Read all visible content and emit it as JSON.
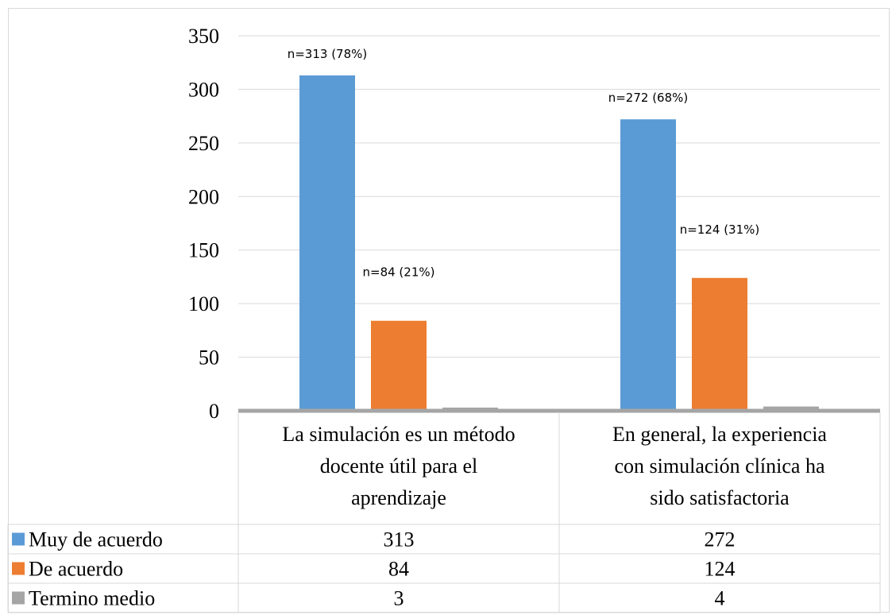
{
  "chart_data": {
    "type": "bar",
    "categories": [
      "La simulación es un método docente útil para el aprendizaje",
      "En general, la experiencia con simulación clínica ha sido satisfactoria"
    ],
    "category_lines": [
      [
        "La simulación es un método",
        "docente útil para el",
        "aprendizaje"
      ],
      [
        "En general, la experiencia",
        "con simulación clínica ha",
        "sido satisfactoria"
      ]
    ],
    "series": [
      {
        "name": "Muy de acuerdo",
        "values": [
          313,
          272
        ],
        "color": "#5b9bd5",
        "data_labels": [
          "n=313 (78%)",
          "n=272 (68%)"
        ]
      },
      {
        "name": "De acuerdo",
        "values": [
          84,
          124
        ],
        "color": "#ed7d31",
        "data_labels": [
          "n=84 (21%)",
          "n=124 (31%)"
        ]
      },
      {
        "name": "Termino medio",
        "values": [
          3,
          4
        ],
        "color": "#a5a5a5",
        "data_labels": [
          "",
          ""
        ]
      }
    ],
    "yticks": [
      0,
      50,
      100,
      150,
      200,
      250,
      300,
      350
    ],
    "ylim": [
      0,
      350
    ],
    "grid": true,
    "legend": "data-table",
    "title": "",
    "xlabel": "",
    "ylabel": ""
  }
}
